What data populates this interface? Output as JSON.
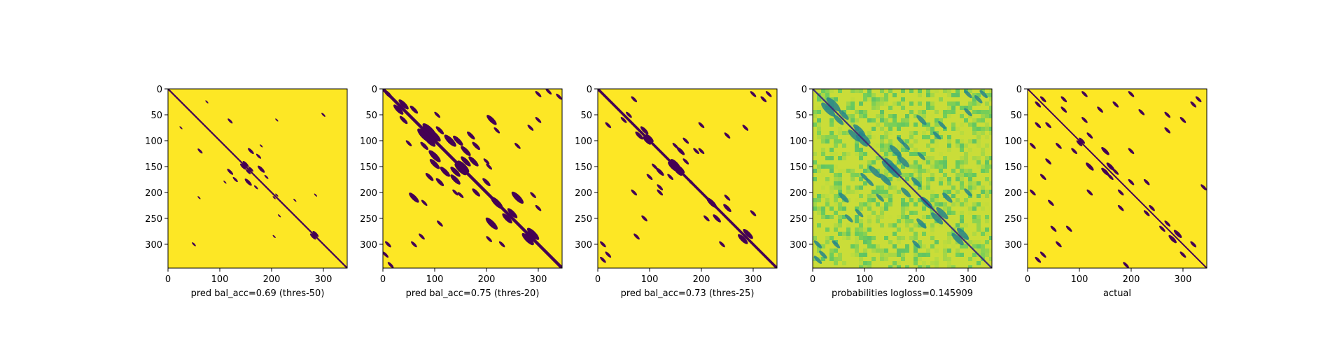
{
  "figure": {
    "colormap": "viridis",
    "colors": {
      "background": "#ffffff",
      "high": "#fde725",
      "low": "#440154",
      "axis": "#000000"
    }
  },
  "chart_data": [
    {
      "type": "heatmap",
      "title": "",
      "xlabel": "pred bal_acc=0.69 (thres-50)",
      "ylabel": "",
      "matrix_size": 346,
      "xlim": [
        0,
        346
      ],
      "ylim": [
        346,
        0
      ],
      "xticks": [
        0,
        100,
        200,
        300
      ],
      "yticks": [
        0,
        50,
        100,
        150,
        200,
        250,
        300
      ],
      "values": "binary",
      "background_value": 1,
      "diagonal_width": 3,
      "contact_blobs": [
        [
          120,
          160,
          6
        ],
        [
          130,
          175,
          5
        ],
        [
          155,
          180,
          7
        ],
        [
          170,
          190,
          4
        ],
        [
          60,
          210,
          3
        ],
        [
          50,
          300,
          4
        ],
        [
          75,
          25,
          3
        ],
        [
          120,
          62,
          5
        ],
        [
          150,
          145,
          6
        ],
        [
          160,
          155,
          5
        ],
        [
          180,
          110,
          3
        ],
        [
          205,
          210,
          3
        ],
        [
          215,
          245,
          3
        ],
        [
          285,
          205,
          3
        ],
        [
          285,
          280,
          6
        ],
        [
          300,
          355,
          2
        ]
      ]
    },
    {
      "type": "heatmap",
      "title": "",
      "xlabel": "pred bal_acc=0.75 (thres-20)",
      "ylabel": "",
      "matrix_size": 346,
      "xlim": [
        0,
        346
      ],
      "ylim": [
        346,
        0
      ],
      "xticks": [
        0,
        100,
        200,
        300
      ],
      "yticks": [
        0,
        50,
        100,
        150,
        200,
        250,
        300
      ],
      "values": "binary",
      "background_value": 1,
      "diagonal_width": 6,
      "contact_blobs": [
        [
          10,
          10,
          8
        ],
        [
          30,
          40,
          10
        ],
        [
          60,
          40,
          8
        ],
        [
          80,
          90,
          14
        ],
        [
          90,
          100,
          12
        ],
        [
          100,
          145,
          10
        ],
        [
          110,
          80,
          8
        ],
        [
          120,
          160,
          10
        ],
        [
          130,
          100,
          12
        ],
        [
          140,
          175,
          10
        ],
        [
          150,
          155,
          12
        ],
        [
          160,
          140,
          10
        ],
        [
          170,
          90,
          8
        ],
        [
          180,
          110,
          8
        ],
        [
          200,
          180,
          8
        ],
        [
          210,
          60,
          10
        ],
        [
          220,
          220,
          12
        ],
        [
          240,
          250,
          10
        ],
        [
          260,
          210,
          12
        ],
        [
          280,
          290,
          12
        ],
        [
          285,
          75,
          6
        ],
        [
          290,
          205,
          6
        ],
        [
          300,
          10,
          6
        ],
        [
          320,
          5,
          6
        ],
        [
          10,
          300,
          6
        ],
        [
          15,
          340,
          6
        ],
        [
          50,
          105,
          6
        ],
        [
          60,
          300,
          6
        ],
        [
          80,
          220,
          6
        ],
        [
          110,
          260,
          6
        ],
        [
          150,
          205,
          6
        ],
        [
          200,
          140,
          6
        ],
        [
          230,
          300,
          6
        ]
      ]
    },
    {
      "type": "heatmap",
      "title": "",
      "xlabel": "pred bal_acc=0.73 (thres-25)",
      "ylabel": "",
      "matrix_size": 346,
      "xlim": [
        0,
        346
      ],
      "ylim": [
        346,
        0
      ],
      "xticks": [
        0,
        100,
        200,
        300
      ],
      "yticks": [
        0,
        50,
        100,
        150,
        200,
        250,
        300
      ],
      "values": "binary",
      "background_value": 1,
      "diagonal_width": 5,
      "contact_blobs": [
        [
          90,
          80,
          8
        ],
        [
          100,
          95,
          8
        ],
        [
          110,
          150,
          6
        ],
        [
          120,
          160,
          8
        ],
        [
          140,
          170,
          6
        ],
        [
          150,
          145,
          10
        ],
        [
          160,
          155,
          8
        ],
        [
          170,
          100,
          6
        ],
        [
          180,
          180,
          6
        ],
        [
          200,
          120,
          6
        ],
        [
          220,
          220,
          10
        ],
        [
          230,
          250,
          8
        ],
        [
          250,
          210,
          6
        ],
        [
          280,
          290,
          10
        ],
        [
          285,
          75,
          6
        ],
        [
          300,
          10,
          6
        ],
        [
          10,
          330,
          6
        ],
        [
          20,
          320,
          6
        ],
        [
          60,
          50,
          6
        ],
        [
          70,
          20,
          6
        ],
        [
          90,
          250,
          6
        ],
        [
          120,
          190,
          6
        ],
        [
          200,
          70,
          6
        ],
        [
          240,
          300,
          6
        ]
      ]
    },
    {
      "type": "heatmap",
      "title": "",
      "xlabel": "probabilities logloss=0.145909",
      "ylabel": "",
      "matrix_size": 346,
      "xlim": [
        0,
        346
      ],
      "ylim": [
        346,
        0
      ],
      "xticks": [
        0,
        100,
        200,
        300
      ],
      "yticks": [
        0,
        50,
        100,
        150,
        200,
        250,
        300
      ],
      "values": "continuous probabilities",
      "background_value": 0.92,
      "diagonal_width": 3,
      "contact_blobs": [
        [
          30,
          40,
          14
        ],
        [
          60,
          50,
          10
        ],
        [
          90,
          80,
          12
        ],
        [
          100,
          95,
          12
        ],
        [
          120,
          160,
          12
        ],
        [
          140,
          175,
          12
        ],
        [
          150,
          145,
          12
        ],
        [
          160,
          155,
          12
        ],
        [
          170,
          100,
          8
        ],
        [
          200,
          180,
          10
        ],
        [
          210,
          60,
          10
        ],
        [
          220,
          220,
          12
        ],
        [
          240,
          250,
          12
        ],
        [
          260,
          210,
          10
        ],
        [
          280,
          290,
          12
        ],
        [
          300,
          10,
          8
        ],
        [
          10,
          330,
          8
        ],
        [
          20,
          320,
          8
        ],
        [
          45,
          300,
          8
        ],
        [
          90,
          240,
          8
        ],
        [
          130,
          210,
          8
        ],
        [
          180,
          110,
          8
        ],
        [
          250,
          70,
          8
        ],
        [
          300,
          200,
          8
        ]
      ]
    },
    {
      "type": "heatmap",
      "title": "",
      "xlabel": "actual",
      "ylabel": "",
      "matrix_size": 346,
      "xlim": [
        0,
        346
      ],
      "ylim": [
        346,
        0
      ],
      "xticks": [
        0,
        100,
        200,
        300
      ],
      "yticks": [
        0,
        50,
        100,
        150,
        200,
        250,
        300
      ],
      "values": "binary",
      "background_value": 1,
      "diagonal_width": 2,
      "contact_blobs": [
        [
          20,
          30,
          6
        ],
        [
          40,
          70,
          6
        ],
        [
          60,
          110,
          6
        ],
        [
          90,
          120,
          6
        ],
        [
          100,
          105,
          6
        ],
        [
          120,
          150,
          8
        ],
        [
          150,
          160,
          8
        ],
        [
          160,
          170,
          6
        ],
        [
          180,
          200,
          6
        ],
        [
          200,
          120,
          6
        ],
        [
          220,
          45,
          6
        ],
        [
          240,
          230,
          6
        ],
        [
          260,
          270,
          6
        ],
        [
          280,
          290,
          8
        ],
        [
          300,
          320,
          6
        ],
        [
          320,
          300,
          6
        ],
        [
          10,
          200,
          6
        ],
        [
          30,
          320,
          6
        ],
        [
          50,
          270,
          6
        ],
        [
          70,
          20,
          6
        ],
        [
          110,
          10,
          6
        ],
        [
          140,
          40,
          6
        ],
        [
          170,
          30,
          6
        ],
        [
          190,
          340,
          6
        ],
        [
          230,
          180,
          6
        ],
        [
          270,
          80,
          6
        ],
        [
          300,
          60,
          6
        ],
        [
          330,
          20,
          6
        ]
      ]
    }
  ]
}
